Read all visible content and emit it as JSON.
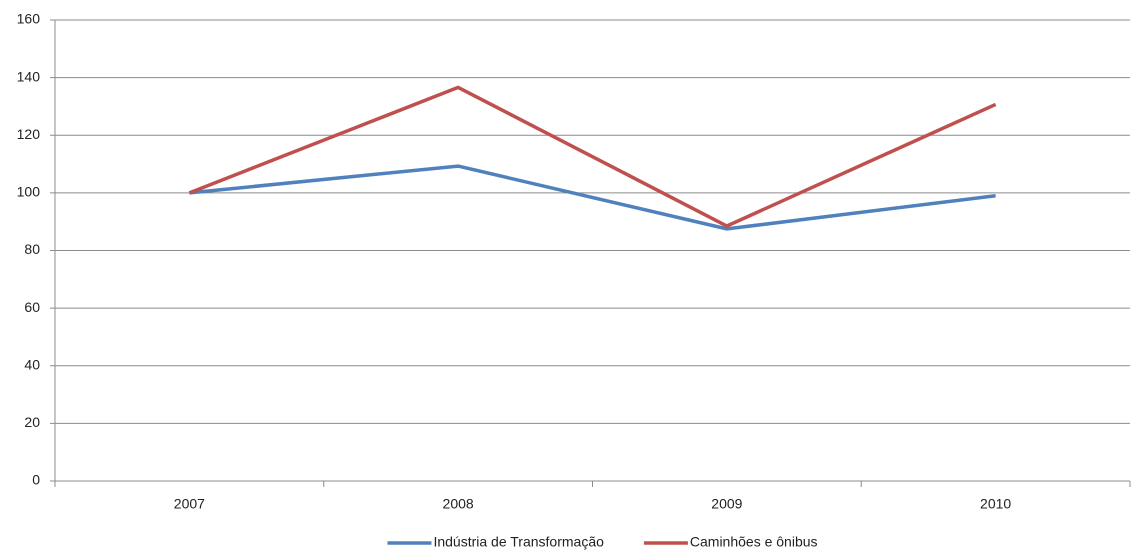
{
  "chart_data": {
    "type": "line",
    "categories": [
      "2007",
      "2008",
      "2009",
      "2010"
    ],
    "series": [
      {
        "name": "Indústria de Transformação",
        "color": "#4f81bd",
        "values": [
          100,
          109.3,
          87.5,
          99
        ]
      },
      {
        "name": "Caminhões e ônibus",
        "color": "#c0504d",
        "values": [
          100,
          136.6,
          88.5,
          130.7
        ]
      }
    ],
    "ylim": [
      0,
      160
    ],
    "yticks": [
      0,
      20,
      40,
      60,
      80,
      100,
      120,
      140,
      160
    ],
    "grid": true,
    "legend": "bottom"
  }
}
